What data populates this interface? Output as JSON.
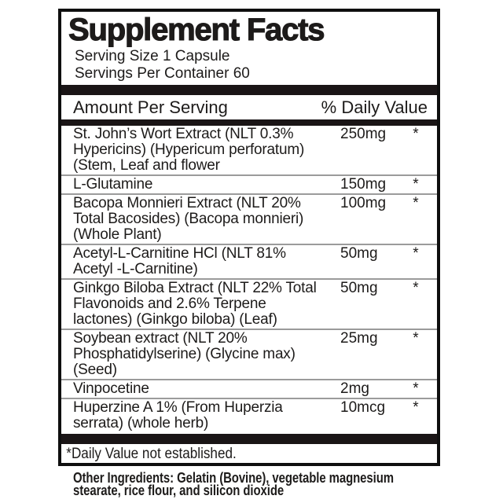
{
  "panel": {
    "title": "Supplement Facts",
    "serving": {
      "size": "Serving Size 1 Capsule",
      "per_container": "Servings Per Container 60"
    },
    "header": {
      "amount": "Amount Per Serving",
      "daily_value": "% Daily Value"
    },
    "rows": [
      {
        "name": "St. John’s Wort Extract (NLT 0.3%\nHypericins) (Hypericum perforatum)\n(Stem, Leaf and flower",
        "amount": "250mg",
        "dv": "*"
      },
      {
        "name": "L-Glutamine",
        "amount": "150mg",
        "dv": "*"
      },
      {
        "name": "Bacopa Monnieri Extract (NLT 20%\nTotal Bacosides) (Bacopa monnieri)\n(Whole Plant)",
        "amount": "100mg",
        "dv": "*"
      },
      {
        "name": "Acetyl-L-Carnitine HCl (NLT 81%\nAcetyl -L-Carnitine)",
        "amount": "50mg",
        "dv": "*"
      },
      {
        "name": "Ginkgo Biloba Extract (NLT 22% Total\nFlavonoids and 2.6% Terpene\nlactones) (Ginkgo biloba) (Leaf)",
        "amount": "50mg",
        "dv": "*"
      },
      {
        "name": "Soybean extract (NLT 20%\nPhosphatidylserine) (Glycine max)\n(Seed)",
        "amount": "25mg",
        "dv": "*"
      },
      {
        "name": "Vinpocetine",
        "amount": "2mg",
        "dv": "*"
      },
      {
        "name": "Huperzine A 1% (From Huperzia\nserrata) (whole herb)",
        "amount": "10mcg",
        "dv": "*"
      }
    ],
    "footnote": "*Daily Value not established.",
    "other_ingredients": "Other Ingredients: Gelatin (Bovine), vegetable magnesium\nstearate, rice flour, and silicon dioxide",
    "colors": {
      "ink": "#1d1b1a",
      "bar": "#1a1516",
      "separator": "#9b9b9b",
      "border": "#0f0f0f",
      "background": "#ffffff"
    }
  }
}
